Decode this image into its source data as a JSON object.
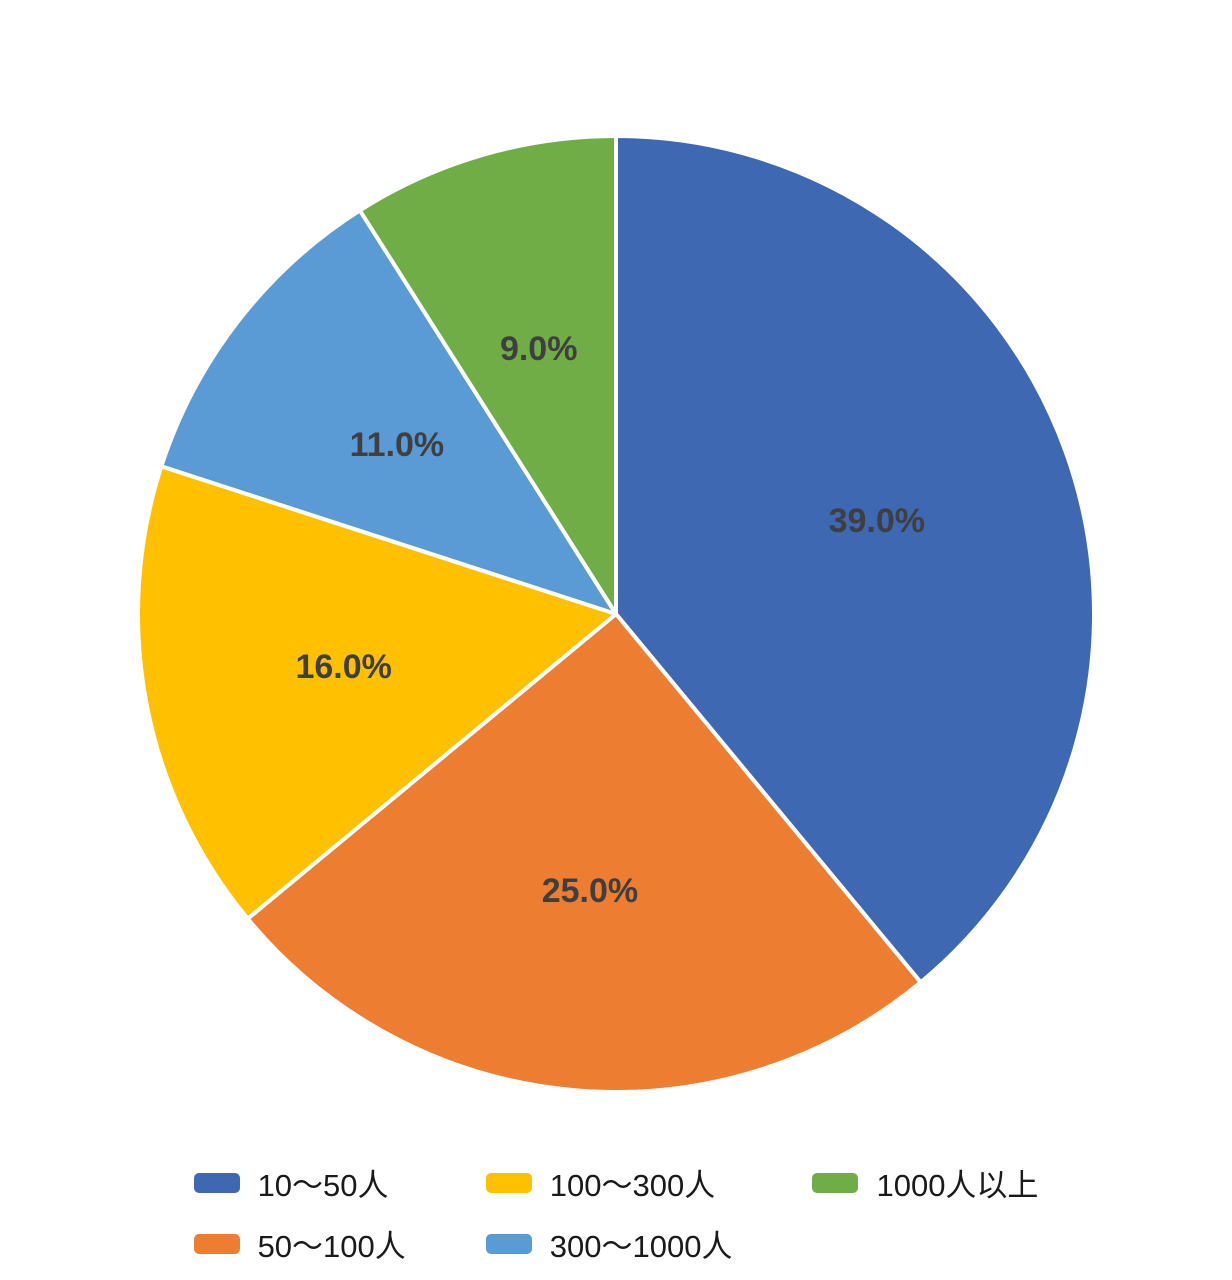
{
  "chart_data": {
    "type": "pie",
    "title": "",
    "labels": [
      "10〜50人",
      "50〜100人",
      "100〜300人",
      "300〜1000人",
      "1000人以上"
    ],
    "values": [
      39.0,
      25.0,
      16.0,
      11.0,
      9.0
    ],
    "value_labels": [
      "39.0%",
      "25.0%",
      "16.0%",
      "11.0%",
      "9.0%"
    ],
    "colors": [
      "#3e68b2",
      "#ED7D31",
      "#FFC000",
      "#5B9BD5",
      "#70AD47"
    ],
    "start_angle_deg": 0,
    "direction": "clockwise",
    "slice_border_color": "#ffffff",
    "slice_border_width": 4,
    "label_color": "#3f3f3f",
    "legend_position": "bottom",
    "legend_columns": 3,
    "legend_fill_order": "column-major"
  }
}
